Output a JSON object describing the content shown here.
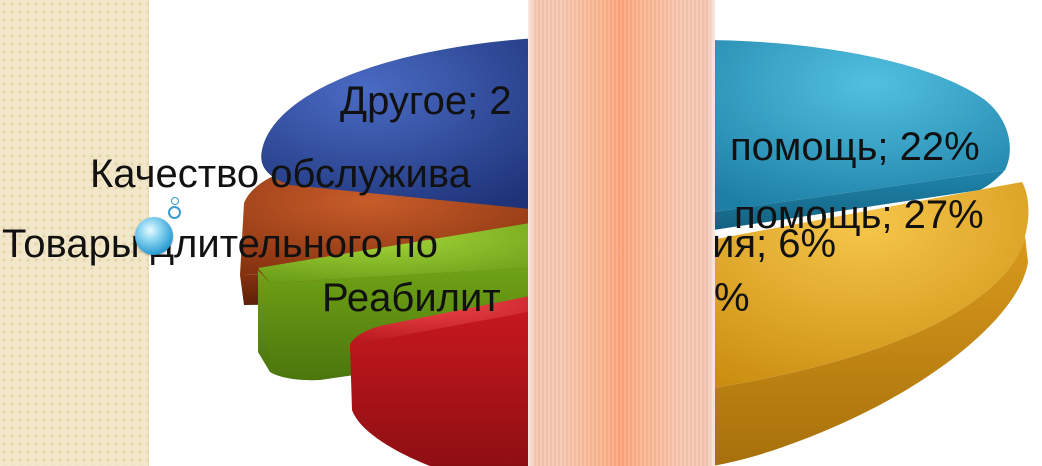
{
  "chart_data": {
    "type": "pie",
    "style": "3d-exploded",
    "slices": [
      {
        "label": "Другое; 2",
        "color": "#2f4a9e",
        "visible_label": "Другое; 2"
      },
      {
        "label": "помощь; 22%",
        "value": 22,
        "color": "#2a9fc4",
        "visible_label": "помощь; 22%"
      },
      {
        "label": "помощь; 27%",
        "value": 27,
        "color": "#e0a21e",
        "visible_label": "помощь; 27%"
      },
      {
        "label": "",
        "color": "#d81e23",
        "visible_label": ""
      },
      {
        "label": "Реабилит",
        "color": "#79b31c",
        "visible_label": "Реабилит"
      },
      {
        "label": "Товары длительного по",
        "color": "#9e3a12",
        "visible_label": "Товары длительного по"
      },
      {
        "label": "Качество обслужива",
        "color": "#9e3a12",
        "visible_label": "Качество обслужива"
      }
    ],
    "labels": {
      "drugoe": "Другое; 2",
      "pomosh22": "помощь; 22%",
      "kachestvo": "Качество обслужива",
      "pomosh27": "помощь; 27%",
      "tovary": "Товары длительного по",
      "tovary_tail": "ия; 6%",
      "reabilit": "Реабилит",
      "reabilit_tail": "%"
    }
  },
  "colors": {
    "sidebar": "#f1e6c8",
    "overlay_band": "#fba47c"
  }
}
